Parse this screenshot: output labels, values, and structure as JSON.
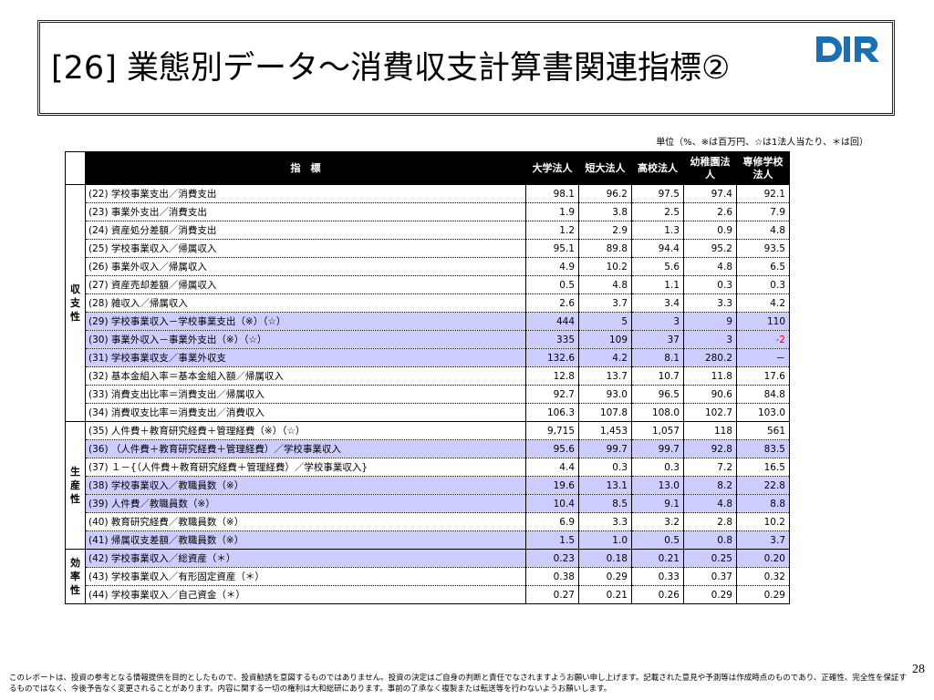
{
  "title": "[26] 業態別データ～消費収支計算書関連指標②",
  "logo_text": "DIR",
  "unit_note": "単位（%、※は百万円、☆は1法人当たり、＊は回）",
  "columns": {
    "indicator": "指　標",
    "c1": "大学法人",
    "c2": "短大法人",
    "c3": "高校法人",
    "c4": "幼稚園法人",
    "c5": "専修学校法人"
  },
  "groups": {
    "g1": "収支性",
    "g2": "生産性",
    "g3": "効率性"
  },
  "rows": [
    {
      "label": "(22) 学校事業支出／消費支出",
      "v": [
        "98.1",
        "96.2",
        "97.5",
        "97.4",
        "92.1"
      ]
    },
    {
      "label": "(23) 事業外支出／消費支出",
      "v": [
        "1.9",
        "3.8",
        "2.5",
        "2.6",
        "7.9"
      ]
    },
    {
      "label": "(24) 資産処分差額／消費支出",
      "v": [
        "1.2",
        "2.9",
        "1.3",
        "0.9",
        "4.8"
      ]
    },
    {
      "label": "(25) 学校事業収入／帰属収入",
      "v": [
        "95.1",
        "89.8",
        "94.4",
        "95.2",
        "93.5"
      ]
    },
    {
      "label": "(26) 事業外収入／帰属収入",
      "v": [
        "4.9",
        "10.2",
        "5.6",
        "4.8",
        "6.5"
      ]
    },
    {
      "label": "(27) 資産売却差額／帰属収入",
      "v": [
        "0.5",
        "4.8",
        "1.1",
        "0.3",
        "0.3"
      ]
    },
    {
      "label": "(28) 雑収入／帰属収入",
      "v": [
        "2.6",
        "3.7",
        "3.4",
        "3.3",
        "4.2"
      ]
    },
    {
      "label": "(29) 学校事業収入－学校事業支出（※）（☆）",
      "v": [
        "444",
        "5",
        "3",
        "9",
        "110"
      ]
    },
    {
      "label": "(30) 事業外収入－事業外支出（※）（☆）",
      "v": [
        "335",
        "109",
        "37",
        "3",
        "-2"
      ]
    },
    {
      "label": "(31) 学校事業収支／事業外収支",
      "v": [
        "132.6",
        "4.2",
        "8.1",
        "280.2",
        "－"
      ]
    },
    {
      "label": "(32) 基本金組入率＝基本金組入額／帰属収入",
      "v": [
        "12.8",
        "13.7",
        "10.7",
        "11.8",
        "17.6"
      ]
    },
    {
      "label": "(33) 消費支出比率＝消費支出／帰属収入",
      "v": [
        "92.7",
        "93.0",
        "96.5",
        "90.6",
        "84.8"
      ]
    },
    {
      "label": "(34) 消費収支比率＝消費支出／消費収入",
      "v": [
        "106.3",
        "107.8",
        "108.0",
        "102.7",
        "103.0"
      ]
    },
    {
      "label": "(35) 人件費＋教育研究経費＋管理経費（※）（☆）",
      "v": [
        "9,715",
        "1,453",
        "1,057",
        "118",
        "561"
      ]
    },
    {
      "label": "(36) （人件費＋教育研究経費＋管理経費）／学校事業収入",
      "v": [
        "95.6",
        "99.7",
        "99.7",
        "92.8",
        "83.5"
      ]
    },
    {
      "label": "(37) １－{（人件費＋教育研究経費＋管理経費）／学校事業収入}",
      "v": [
        "4.4",
        "0.3",
        "0.3",
        "7.2",
        "16.5"
      ]
    },
    {
      "label": "(38) 学校事業収入／教職員数（※）",
      "v": [
        "19.6",
        "13.1",
        "13.0",
        "8.2",
        "22.8"
      ]
    },
    {
      "label": "(39) 人件費／教職員数（※）",
      "v": [
        "10.4",
        "8.5",
        "9.1",
        "4.8",
        "8.8"
      ]
    },
    {
      "label": "(40) 教育研究経費／教職員数（※）",
      "v": [
        "6.9",
        "3.3",
        "3.2",
        "2.8",
        "10.2"
      ]
    },
    {
      "label": "(41) 帰属収支差額／教職員数（※）",
      "v": [
        "1.5",
        "1.0",
        "0.5",
        "0.8",
        "3.7"
      ]
    },
    {
      "label": "(42) 学校事業収入／総資産（＊）",
      "v": [
        "0.23",
        "0.18",
        "0.21",
        "0.25",
        "0.20"
      ]
    },
    {
      "label": "(43) 学校事業収入／有形固定資産（＊）",
      "v": [
        "0.38",
        "0.29",
        "0.33",
        "0.37",
        "0.32"
      ]
    },
    {
      "label": "(44) 学校事業収入／自己資金（＊）",
      "v": [
        "0.27",
        "0.21",
        "0.26",
        "0.29",
        "0.29"
      ]
    }
  ],
  "footer": "このレポートは、投資の参考となる情報提供を目的としたもので、投資勧誘を意図するものではありません。投資の決定はご自身の判断と責任でなされますようお願い申し上げます。記載された意見や予測等は作成時点のものであり、正確性、完全性を保証するものではなく、今後予告なく変更されることがあります。内容に関する一切の権利は大和総研にあります。事前の了承なく複製または転送等を行わないようお願いします。",
  "page_number": "28",
  "colors": {
    "highlight": "#ccccff",
    "header": "#000000",
    "negative": "#ff0000",
    "logo": "#1a6fb5"
  }
}
